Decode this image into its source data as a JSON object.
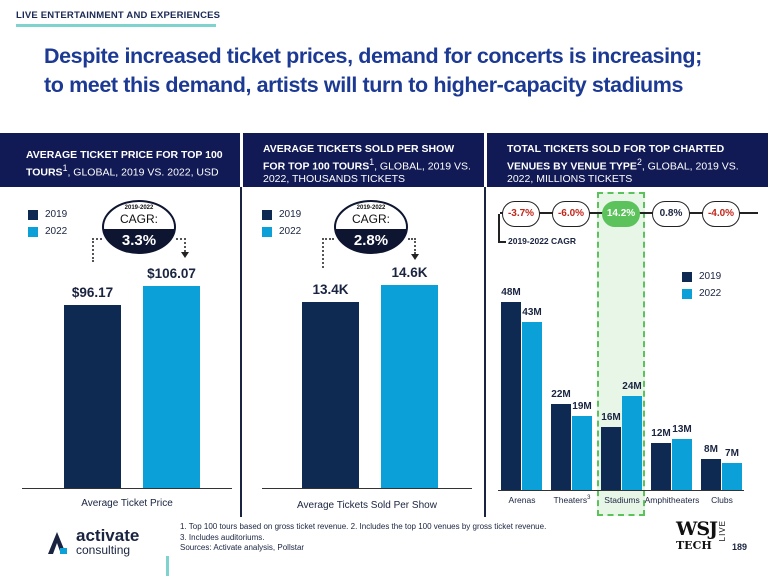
{
  "section_label": "LIVE ENTERTAINMENT AND EXPERIENCES",
  "headline_line1": "Despite increased ticket prices, demand for concerts is increasing;",
  "headline_line2": "to meet this demand, artists will turn to higher-capacity stadiums",
  "colors": {
    "navy": "#0e2a52",
    "blue": "#0ba0d8",
    "green": "#5cc25c",
    "red": "#c0271b",
    "header": "#111a55"
  },
  "panels": [
    {
      "header_bold": "AVERAGE TICKET PRICE FOR TOP 100 TOURS",
      "header_sup": "1",
      "header_rest": ", GLOBAL, 2019 VS. 2022, USD",
      "legend": [
        "2019",
        "2022"
      ],
      "cagr_years": "2019-2022",
      "cagr_label": "CAGR:",
      "cagr_value": "3.3%",
      "xlabel": "Average Ticket Price"
    },
    {
      "header_bold": "AVERAGE TICKETS SOLD PER SHOW FOR TOP 100 TOURS",
      "header_sup": "1",
      "header_rest": ", GLOBAL, 2019 VS. 2022, THOUSANDS TICKETS",
      "legend": [
        "2019",
        "2022"
      ],
      "cagr_years": "2019-2022",
      "cagr_label": "CAGR:",
      "cagr_value": "2.8%",
      "xlabel": "Average Tickets Sold Per Show"
    },
    {
      "header_bold": "TOTAL TICKETS SOLD FOR TOP CHARTED VENUES BY VENUE TYPE",
      "header_sup": "2",
      "header_rest": ", GLOBAL, 2019 VS. 2022, MILLIONS TICKETS",
      "legend": [
        "2019",
        "2022"
      ],
      "cagr_note": "2019-2022 CAGR"
    }
  ],
  "chart_data": [
    {
      "type": "bar",
      "categories": [
        "Average Ticket Price"
      ],
      "series": [
        {
          "name": "2019",
          "values": [
            96.17
          ],
          "labels": [
            "$96.17"
          ]
        },
        {
          "name": "2022",
          "values": [
            106.07
          ],
          "labels": [
            "$106.07"
          ]
        }
      ],
      "cagr": "3.3%"
    },
    {
      "type": "bar",
      "categories": [
        "Average Tickets Sold Per Show"
      ],
      "series": [
        {
          "name": "2019",
          "values": [
            13.4
          ],
          "labels": [
            "13.4K"
          ]
        },
        {
          "name": "2022",
          "values": [
            14.6
          ],
          "labels": [
            "14.6K"
          ]
        }
      ],
      "cagr": "2.8%"
    },
    {
      "type": "bar",
      "categories": [
        "Arenas",
        "Theaters",
        "Stadiums",
        "Amphitheaters",
        "Clubs"
      ],
      "category_sups": [
        "",
        "3",
        "",
        "",
        ""
      ],
      "series": [
        {
          "name": "2019",
          "values": [
            48,
            22,
            16,
            12,
            8
          ],
          "labels": [
            "48M",
            "22M",
            "16M",
            "12M",
            "8M"
          ]
        },
        {
          "name": "2022",
          "values": [
            43,
            19,
            24,
            13,
            7
          ],
          "labels": [
            "43M",
            "19M",
            "24M",
            "13M",
            "7M"
          ]
        }
      ],
      "cagr": [
        "-3.7%",
        "-6.0%",
        "14.2%",
        "0.8%",
        "-4.0%"
      ],
      "cagr_sign": [
        "neg",
        "neg",
        "hi",
        "pos",
        "neg"
      ],
      "highlight": "Stadiums"
    }
  ],
  "footer": {
    "logo_name": "activate",
    "logo_sub": "consulting",
    "note1": "1. Top 100 tours based on gross ticket revenue.  2. Includes the top 100 venues by gross ticket revenue.",
    "note2": "3. Includes auditoriums.",
    "note3": "Sources: Activate analysis, Pollstar",
    "brand_w1": "WSJ",
    "brand_w2": "TECH",
    "brand_live": "LIVE",
    "page": "189"
  }
}
